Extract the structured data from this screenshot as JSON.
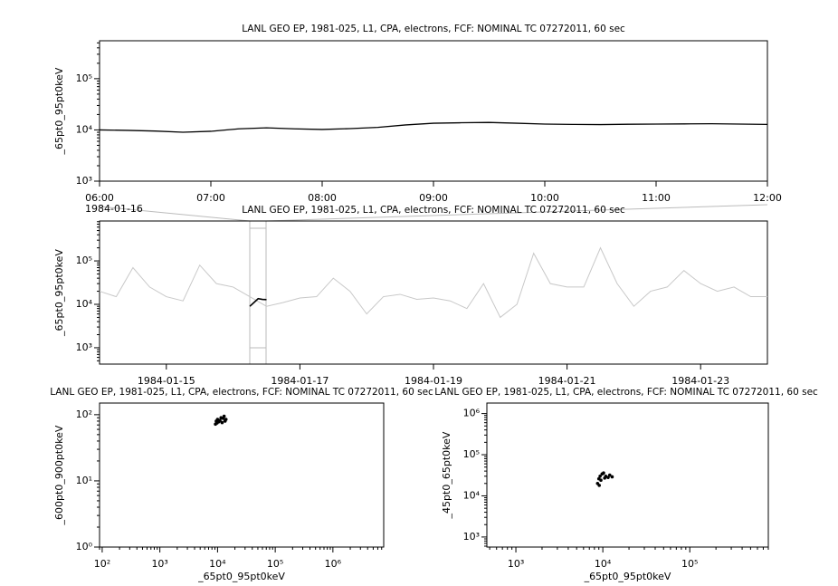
{
  "chart_data": [
    {
      "type": "line",
      "title": "LANL GEO EP, 1981-025, L1, CPA, electrons, FCF: NOMINAL TC 07272011, 60 sec",
      "y_label": "_65pt0_95pt0keV",
      "x_date_label": "1984-01-16",
      "color": "#000000",
      "x": [
        "06:00",
        "06:15",
        "06:30",
        "06:45",
        "07:00",
        "07:15",
        "07:30",
        "07:45",
        "08:00",
        "08:15",
        "08:30",
        "08:45",
        "09:00",
        "09:15",
        "09:30",
        "09:45",
        "10:00",
        "10:15",
        "10:30",
        "10:45",
        "11:00",
        "11:15",
        "11:30",
        "11:45",
        "12:00"
      ],
      "values": [
        10000,
        9800,
        9500,
        9000,
        9400,
        10500,
        11000,
        10500,
        10200,
        10600,
        11200,
        12500,
        13500,
        13800,
        14000,
        13500,
        13000,
        12800,
        12700,
        12900,
        13000,
        13100,
        13200,
        13000,
        12800
      ],
      "xlim": [
        "06:00",
        "12:00"
      ],
      "xticks": [
        "06:00",
        "07:00",
        "08:00",
        "09:00",
        "10:00",
        "11:00",
        "12:00"
      ],
      "ylog": true,
      "ylim": [
        1000,
        550000
      ],
      "yticks": [
        {
          "value": 1000,
          "label": "10³"
        },
        {
          "value": 10000,
          "label": "10⁴"
        },
        {
          "value": 100000,
          "label": "10⁵"
        }
      ]
    },
    {
      "type": "line",
      "title": "LANL GEO EP, 1981-025, L1, CPA, electrons, FCF: NOMINAL TC 07272011, 60 sec",
      "y_label": "_65pt0_95pt0keV",
      "series": [
        {
          "color": "#c8c8c8",
          "x": [
            "1984-01-14 00:00",
            "1984-01-14 06:00",
            "1984-01-14 12:00",
            "1984-01-14 18:00",
            "1984-01-15 00:00",
            "1984-01-15 06:00",
            "1984-01-15 12:00",
            "1984-01-15 18:00",
            "1984-01-16 00:00",
            "1984-01-16 06:00",
            "1984-01-16 12:00",
            "1984-01-16 18:00",
            "1984-01-17 00:00",
            "1984-01-17 06:00",
            "1984-01-17 12:00",
            "1984-01-17 18:00",
            "1984-01-18 00:00",
            "1984-01-18 06:00",
            "1984-01-18 12:00",
            "1984-01-18 18:00",
            "1984-01-19 00:00",
            "1984-01-19 06:00",
            "1984-01-19 12:00",
            "1984-01-19 18:00",
            "1984-01-20 00:00",
            "1984-01-20 06:00",
            "1984-01-20 12:00",
            "1984-01-20 18:00",
            "1984-01-21 00:00",
            "1984-01-21 06:00",
            "1984-01-21 12:00",
            "1984-01-21 18:00",
            "1984-01-22 00:00",
            "1984-01-22 06:00",
            "1984-01-22 12:00",
            "1984-01-22 18:00",
            "1984-01-23 00:00",
            "1984-01-23 06:00",
            "1984-01-23 12:00",
            "1984-01-23 18:00",
            "1984-01-24 00:00"
          ],
          "values": [
            20000,
            15000,
            70000,
            25000,
            15000,
            12000,
            80000,
            30000,
            25000,
            15000,
            9000,
            11000,
            14000,
            15000,
            40000,
            20000,
            6000,
            15000,
            17000,
            13000,
            14000,
            12000,
            8000,
            30000,
            5000,
            10000,
            150000,
            30000,
            25000,
            25000,
            200000,
            30000,
            9000,
            20000,
            25000,
            60000,
            30000,
            20000,
            25000,
            15000,
            15000
          ]
        },
        {
          "color": "#000000",
          "x": [
            "1984-01-16 06:00",
            "1984-01-16 07:30",
            "1984-01-16 09:00",
            "1984-01-16 10:30",
            "1984-01-16 12:00"
          ],
          "values": [
            9000,
            11000,
            13500,
            13000,
            12800
          ]
        }
      ],
      "xlim": [
        "1984-01-14",
        "1984-01-24"
      ],
      "xticks": [
        "1984-01-15",
        "1984-01-17",
        "1984-01-19",
        "1984-01-21",
        "1984-01-23"
      ],
      "ylog": true,
      "ylim": [
        420,
        830000
      ],
      "yticks": [
        {
          "value": 1000,
          "label": "10³"
        },
        {
          "value": 10000,
          "label": "10⁴"
        },
        {
          "value": 100000,
          "label": "10⁵"
        }
      ]
    },
    {
      "type": "scatter",
      "title": "LANL GEO EP, 1981-025, L1, CPA, electrons, FCF: NOMINAL TC 07272011, 60 sec",
      "x_label": "_65pt0_95pt0keV",
      "y_label": "_600pt0_900pt0keV",
      "color": "#000000",
      "x": [
        9500,
        9800,
        10000,
        10500,
        11000,
        11500,
        12000,
        12500,
        13000,
        13500,
        14000,
        9200
      ],
      "values": [
        80,
        75,
        85,
        78,
        82,
        90,
        76,
        88,
        95,
        80,
        85,
        72
      ],
      "xlog": true,
      "ylog": true,
      "xlim": [
        90,
        7600000
      ],
      "ylim": [
        1,
        150
      ],
      "xticks": [
        {
          "value": 100,
          "label": "10²"
        },
        {
          "value": 1000,
          "label": "10³"
        },
        {
          "value": 10000,
          "label": "10⁴"
        },
        {
          "value": 100000,
          "label": "10⁵"
        },
        {
          "value": 1000000,
          "label": "10⁶"
        }
      ],
      "yticks": [
        {
          "value": 1,
          "label": "10⁰"
        },
        {
          "value": 10,
          "label": "10¹"
        },
        {
          "value": 100,
          "label": "10²"
        }
      ]
    },
    {
      "type": "scatter",
      "title": "LANL GEO EP, 1981-025, L1, CPA, electrons, FCF: NOMINAL TC 07272011, 60 sec",
      "x_label": "_65pt0_95pt0keV",
      "y_label": "_45pt0_65pt0keV",
      "color": "#000000",
      "x": [
        8700,
        9000,
        9300,
        9800,
        10200,
        10800,
        11500,
        12000,
        12800,
        9100,
        9500,
        10500
      ],
      "values": [
        20000,
        26000,
        30000,
        34000,
        36000,
        30000,
        28000,
        32000,
        29000,
        18000,
        24000,
        27000
      ],
      "xlog": true,
      "ylog": true,
      "xlim": [
        464,
        800000
      ],
      "ylim": [
        570,
        1800000
      ],
      "xticks": [
        {
          "value": 1000,
          "label": "10³"
        },
        {
          "value": 10000,
          "label": "10⁴"
        },
        {
          "value": 100000,
          "label": "10⁵"
        }
      ],
      "yticks": [
        {
          "value": 1000,
          "label": "10³"
        },
        {
          "value": 10000,
          "label": "10⁴"
        },
        {
          "value": 100000,
          "label": "10⁵"
        },
        {
          "value": 1000000,
          "label": "10⁶"
        }
      ]
    }
  ]
}
